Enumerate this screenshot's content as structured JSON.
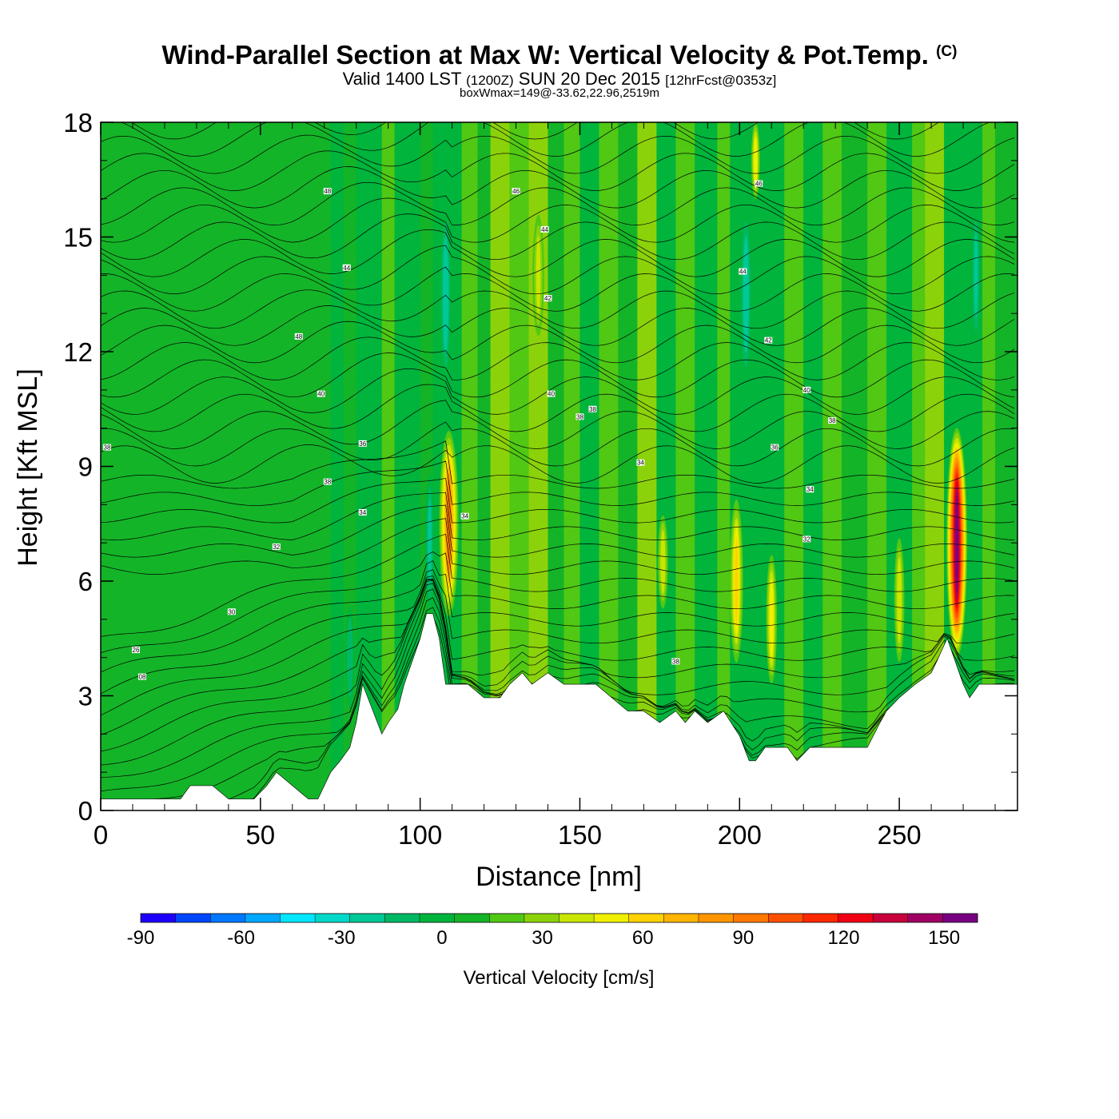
{
  "header": {
    "title": "Wind-Parallel Section at Max W: Vertical Velocity & Pot.Temp.",
    "copyright": "(C)",
    "valid_prefix": "Valid 1400 LST",
    "valid_utc": "(1200Z)",
    "valid_date": "SUN 20 Dec 2015",
    "forecast": "[12hrFcst@0353z]",
    "boxwmax": "boxWmax=149@-33.62,22.96,2519m"
  },
  "chart_data": {
    "type": "heatmap",
    "title": "Wind-Parallel Section at Max W: Vertical Velocity & Pot.Temp.",
    "xlabel": "Distance [nm]",
    "ylabel": "Height [Kft MSL]",
    "xlim": [
      0,
      287
    ],
    "ylim": [
      0,
      18
    ],
    "x_ticks": [
      0,
      50,
      100,
      150,
      200,
      250
    ],
    "y_ticks": [
      0,
      3,
      6,
      9,
      12,
      15,
      18
    ],
    "grid": false,
    "colorbar": {
      "label": "Vertical Velocity [cm/s]",
      "placement": "bottom",
      "min": -90,
      "max": 160,
      "step": 10,
      "tick_values": [
        -90,
        -60,
        -30,
        0,
        30,
        60,
        90,
        120,
        150
      ],
      "tick_labels": [
        "-90",
        "-60",
        "-30",
        "0",
        "30",
        "60",
        "90",
        "120",
        "150"
      ],
      "colors": [
        "#1e00ff",
        "#0046ff",
        "#0078ff",
        "#00a8ff",
        "#00e6ff",
        "#00d8c8",
        "#00c896",
        "#00b864",
        "#00b43c",
        "#14b428",
        "#50c814",
        "#8cd20a",
        "#c8e600",
        "#f0f000",
        "#ffd200",
        "#ffb400",
        "#ff9600",
        "#ff7800",
        "#ff5000",
        "#ff2800",
        "#f00014",
        "#c8003c",
        "#a00064",
        "#780082"
      ]
    },
    "terrain": {
      "x": [
        0,
        25,
        28,
        35,
        40,
        48,
        52,
        55,
        60,
        65,
        68,
        70,
        72,
        75,
        78,
        80,
        82,
        85,
        88,
        90,
        93,
        95,
        100,
        102,
        104,
        106,
        108,
        110,
        115,
        120,
        125,
        128,
        132,
        135,
        140,
        145,
        150,
        155,
        160,
        165,
        170,
        175,
        180,
        183,
        186,
        190,
        195,
        200,
        203,
        205,
        208,
        210,
        215,
        218,
        222,
        225,
        230,
        240,
        244,
        246,
        250,
        255,
        260,
        262,
        265,
        270,
        272,
        275,
        280,
        287
      ],
      "height_kft": [
        0.3,
        0.3,
        0.65,
        0.65,
        0.3,
        0.3,
        0.65,
        1.0,
        0.65,
        0.3,
        0.3,
        0.65,
        1.0,
        1.3,
        1.65,
        2.3,
        3.3,
        2.65,
        2.0,
        2.3,
        2.65,
        3.3,
        4.5,
        5.15,
        5.15,
        4.5,
        3.3,
        3.3,
        3.3,
        2.95,
        2.95,
        3.3,
        3.6,
        3.3,
        3.6,
        3.3,
        3.3,
        3.3,
        2.95,
        2.6,
        2.6,
        2.3,
        2.6,
        2.3,
        2.6,
        2.3,
        2.6,
        1.95,
        1.3,
        1.3,
        1.65,
        1.65,
        1.65,
        1.3,
        1.65,
        1.65,
        1.65,
        1.65,
        2.3,
        2.6,
        2.95,
        3.3,
        3.6,
        3.95,
        4.5,
        3.3,
        2.95,
        3.3,
        3.3,
        3.3
      ]
    },
    "updrafts": [
      {
        "x": 109,
        "z_center": 7.5,
        "width_nm": 4,
        "z_top": 10.2,
        "peak_cms": 85
      },
      {
        "x": 176,
        "z_center": 6.5,
        "width_nm": 2.5,
        "z_top": 8.0,
        "peak_cms": 40
      },
      {
        "x": 199,
        "z_center": 6.0,
        "width_nm": 3,
        "z_top": 8.5,
        "peak_cms": 55
      },
      {
        "x": 210,
        "z_center": 5.0,
        "width_nm": 2.5,
        "z_top": 7.0,
        "peak_cms": 50
      },
      {
        "x": 250,
        "z_center": 5.5,
        "width_nm": 2.5,
        "z_top": 7.5,
        "peak_cms": 40
      },
      {
        "x": 268,
        "z_center": 7.0,
        "width_nm": 4,
        "z_top": 10.2,
        "peak_cms": 149
      },
      {
        "x": 205,
        "z_center": 17.0,
        "width_nm": 2,
        "z_top": 18.0,
        "peak_cms": 50
      },
      {
        "x": 137,
        "z_center": 14.0,
        "width_nm": 3,
        "z_top": 16.0,
        "peak_cms": 35
      }
    ],
    "downdrafts": [
      {
        "x": 108,
        "z_center": 13.5,
        "width_nm": 2.5,
        "z_top": 16.0,
        "peak_cms": -30
      },
      {
        "x": 202,
        "z_center": 13.5,
        "width_nm": 2.5,
        "z_top": 16.0,
        "peak_cms": -30
      },
      {
        "x": 274,
        "z_center": 14.0,
        "width_nm": 2,
        "z_top": 16.0,
        "peak_cms": -25
      },
      {
        "x": 78,
        "z_center": 4.0,
        "width_nm": 2,
        "z_top": 5.5,
        "peak_cms": -20
      },
      {
        "x": 103,
        "z_center": 7.0,
        "width_nm": 2,
        "z_top": 9.0,
        "peak_cms": -25
      }
    ],
    "theta_contours": {
      "label_units": "pot. temp",
      "labels": [
        {
          "x": 2,
          "z": 9.5,
          "text": "38"
        },
        {
          "x": 11,
          "z": 4.2,
          "text": "26"
        },
        {
          "x": 13,
          "z": 3.5,
          "text": "08"
        },
        {
          "x": 41,
          "z": 5.2,
          "text": "30"
        },
        {
          "x": 55,
          "z": 6.9,
          "text": "32"
        },
        {
          "x": 62,
          "z": 12.4,
          "text": "48"
        },
        {
          "x": 69,
          "z": 10.9,
          "text": "40"
        },
        {
          "x": 71,
          "z": 8.6,
          "text": "38"
        },
        {
          "x": 71,
          "z": 16.2,
          "text": "48"
        },
        {
          "x": 77,
          "z": 14.2,
          "text": "44"
        },
        {
          "x": 82,
          "z": 9.6,
          "text": "36"
        },
        {
          "x": 82,
          "z": 7.8,
          "text": "34"
        },
        {
          "x": 114,
          "z": 7.7,
          "text": "34"
        },
        {
          "x": 130,
          "z": 16.2,
          "text": "46"
        },
        {
          "x": 139,
          "z": 15.2,
          "text": "44"
        },
        {
          "x": 140,
          "z": 13.4,
          "text": "42"
        },
        {
          "x": 141,
          "z": 10.9,
          "text": "40"
        },
        {
          "x": 150,
          "z": 10.3,
          "text": "38"
        },
        {
          "x": 154,
          "z": 10.5,
          "text": "38"
        },
        {
          "x": 169,
          "z": 9.1,
          "text": "34"
        },
        {
          "x": 180,
          "z": 3.9,
          "text": "38"
        },
        {
          "x": 201,
          "z": 14.1,
          "text": "44"
        },
        {
          "x": 206,
          "z": 16.4,
          "text": "46"
        },
        {
          "x": 209,
          "z": 12.3,
          "text": "42"
        },
        {
          "x": 211,
          "z": 9.5,
          "text": "36"
        },
        {
          "x": 221,
          "z": 11.0,
          "text": "40"
        },
        {
          "x": 222,
          "z": 8.4,
          "text": "34"
        },
        {
          "x": 221,
          "z": 7.1,
          "text": "32"
        },
        {
          "x": 229,
          "z": 10.2,
          "text": "38"
        }
      ]
    }
  }
}
